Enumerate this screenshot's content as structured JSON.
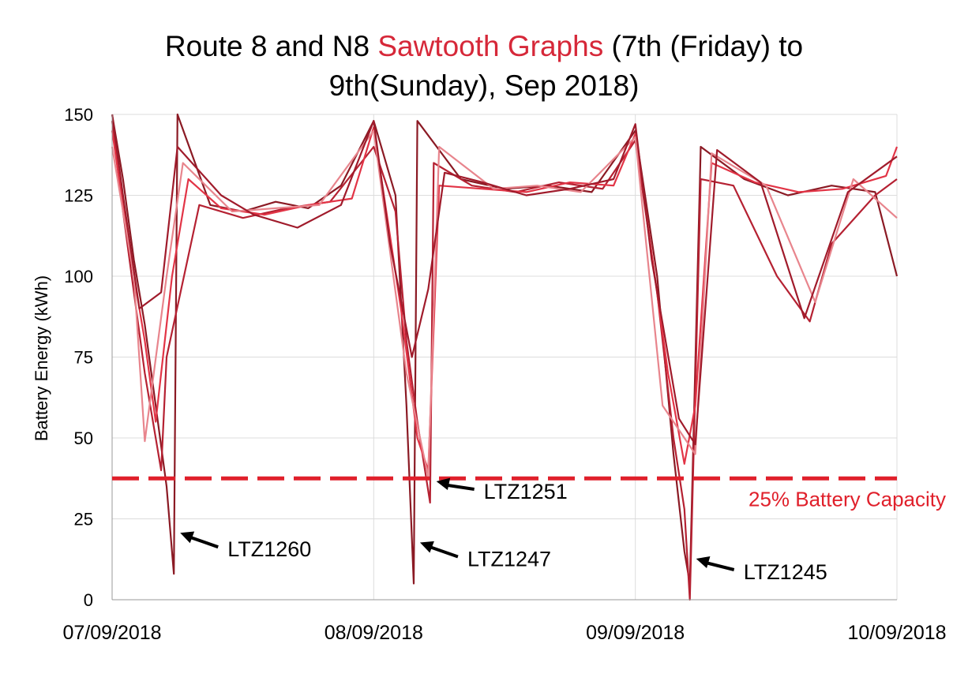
{
  "title": {
    "part1": "Route 8 and N8 ",
    "highlight": "Sawtooth Graphs",
    "part2": " (7th (Friday) to",
    "line2": "9th(Sunday), Sep 2018)"
  },
  "colors": {
    "highlight": "#d62839",
    "threshold": "#e0202b",
    "series": [
      "#8b1a24",
      "#b52132",
      "#e23446",
      "#e8858d",
      "#a01b2b",
      "#cf2838",
      "#f06070",
      "#7a1520"
    ]
  },
  "chart_data": {
    "type": "line",
    "xlabel": "",
    "ylabel": "Battery Energy (kWh)",
    "ylim": [
      0,
      150
    ],
    "yticks": [
      "0",
      "25",
      "50",
      "75",
      "100",
      "125",
      "150"
    ],
    "xlim": [
      "07/09/2018",
      "10/09/2018"
    ],
    "xticks": [
      "07/09/2018",
      "08/09/2018",
      "09/09/2018",
      "10/09/2018"
    ],
    "grid": true,
    "threshold": {
      "value": 37.5,
      "label": "25% Battery Capacity"
    },
    "annotations": [
      {
        "label": "LTZ1260",
        "x": "07/09/2018 05:40",
        "y": 8
      },
      {
        "label": "LTZ1247",
        "x": "08/09/2018 03:40",
        "y": 5
      },
      {
        "label": "LTZ1251",
        "x": "08/09/2018 05:10",
        "y": 30
      },
      {
        "label": "LTZ1245",
        "x": "09/09/2018 05:00",
        "y": 0
      }
    ],
    "series": [
      {
        "x": [
          "07/09 00:00",
          "07/09 01:00",
          "07/09 02:00",
          "07/09 03:00",
          "07/09 04:00",
          "07/09 05:00",
          "07/09 05:40",
          "07/09 06:00",
          "07/09 09:00",
          "07/09 12:00",
          "07/09 15:00",
          "07/09 18:00",
          "07/09 21:00",
          "08/09 00:00",
          "08/09 02:00",
          "08/09 03:00",
          "08/09 03:40",
          "08/09 04:00",
          "08/09 08:00",
          "08/09 12:00",
          "08/09 16:00",
          "08/09 20:00",
          "09/09 00:00",
          "09/09 02:00",
          "09/09 03:30",
          "09/09 04:30",
          "09/09 05:00",
          "09/09 06:00",
          "09/09 10:00",
          "09/09 14:00",
          "09/09 18:00",
          "09/09 22:00",
          "10/09 00:00"
        ],
        "y": [
          150,
          130,
          105,
          85,
          60,
          35,
          8,
          150,
          122,
          120,
          123,
          121,
          128,
          148,
          125,
          60,
          5,
          148,
          130,
          127,
          128,
          126,
          145,
          100,
          45,
          15,
          5,
          140,
          130,
          125,
          128,
          126,
          100
        ]
      },
      {
        "x": [
          "07/09 00:00",
          "07/09 01:00",
          "07/09 02:00",
          "07/09 03:00",
          "07/09 04:00",
          "07/09 04:30",
          "07/09 05:00",
          "07/09 08:00",
          "07/09 12:00",
          "07/09 16:00",
          "07/09 20:00",
          "08/09 00:00",
          "08/09 02:00",
          "08/09 03:00",
          "08/09 04:00",
          "08/09 05:10",
          "08/09 05:30",
          "08/09 09:00",
          "08/09 13:00",
          "08/09 17:00",
          "08/09 21:00",
          "09/09 00:00",
          "09/09 02:00",
          "09/09 03:30",
          "09/09 04:30",
          "09/09 05:00",
          "09/09 06:00",
          "09/09 09:00",
          "09/09 13:00",
          "09/09 16:00",
          "09/09 18:00",
          "09/09 22:00",
          "10/09 00:00"
        ],
        "y": [
          148,
          120,
          95,
          70,
          50,
          40,
          75,
          122,
          118,
          121,
          123,
          140,
          120,
          80,
          55,
          30,
          135,
          128,
          126,
          129,
          127,
          142,
          95,
          50,
          28,
          0,
          130,
          128,
          100,
          86,
          110,
          125,
          130
        ]
      },
      {
        "x": [
          "07/09 00:00",
          "07/09 01:30",
          "07/09 03:00",
          "07/09 04:00",
          "07/09 05:30",
          "07/09 07:00",
          "07/09 10:00",
          "07/09 14:00",
          "07/09 18:00",
          "07/09 22:00",
          "08/09 00:00",
          "08/09 02:30",
          "08/09 04:00",
          "08/09 05:00",
          "08/09 06:00",
          "08/09 10:00",
          "08/09 14:00",
          "08/09 18:00",
          "08/09 22:00",
          "09/09 00:00",
          "09/09 03:00",
          "09/09 04:30",
          "09/09 05:30",
          "09/09 07:00",
          "09/09 11:00",
          "09/09 15:00",
          "09/09 19:00",
          "09/09 23:00",
          "10/09 00:00"
        ],
        "y": [
          145,
          110,
          80,
          55,
          100,
          130,
          121,
          119,
          122,
          124,
          146,
          90,
          50,
          40,
          128,
          127,
          126,
          129,
          128,
          144,
          70,
          42,
          60,
          135,
          129,
          126,
          127,
          131,
          140
        ]
      },
      {
        "x": [
          "07/09 00:00",
          "07/09 02:00",
          "07/09 03:00",
          "07/09 05:00",
          "07/09 06:30",
          "07/09 11:00",
          "07/09 15:00",
          "07/09 19:00",
          "08/09 00:00",
          "08/09 03:00",
          "08/09 05:00",
          "08/09 06:00",
          "08/09 11:00",
          "08/09 15:00",
          "08/09 19:00",
          "09/09 00:00",
          "09/09 02:30",
          "09/09 05:30",
          "09/09 07:00",
          "09/09 12:00",
          "09/09 16:30",
          "09/09 20:00",
          "10/09 00:00"
        ],
        "y": [
          140,
          100,
          49,
          100,
          135,
          120,
          121,
          122,
          145,
          70,
          38,
          140,
          127,
          128,
          126,
          143,
          60,
          45,
          138,
          128,
          92,
          130,
          118
        ]
      },
      {
        "x": [
          "07/09 00:00",
          "07/09 01:00",
          "07/09 02:30",
          "07/09 04:30",
          "07/09 06:00",
          "07/09 10:00",
          "07/09 13:00",
          "07/09 17:00",
          "07/09 21:00",
          "08/09 00:00",
          "08/09 01:30",
          "08/09 03:30",
          "08/09 05:00",
          "08/09 06:30",
          "08/09 10:00",
          "08/09 14:00",
          "08/09 18:00",
          "08/09 22:00",
          "09/09 00:00",
          "09/09 01:30",
          "09/09 04:00",
          "09/09 05:30",
          "09/09 07:30",
          "09/09 11:30",
          "09/09 15:30",
          "09/09 19:30",
          "10/09 00:00"
        ],
        "y": [
          150,
          125,
          90,
          95,
          140,
          125,
          119,
          115,
          122,
          148,
          110,
          75,
          96,
          132,
          129,
          125,
          127,
          130,
          147,
          105,
          56,
          48,
          139,
          129,
          87,
          126,
          137
        ]
      }
    ]
  },
  "arrows_text": [
    "LTZ1260",
    "LTZ1247",
    "LTZ1251",
    "LTZ1245"
  ]
}
